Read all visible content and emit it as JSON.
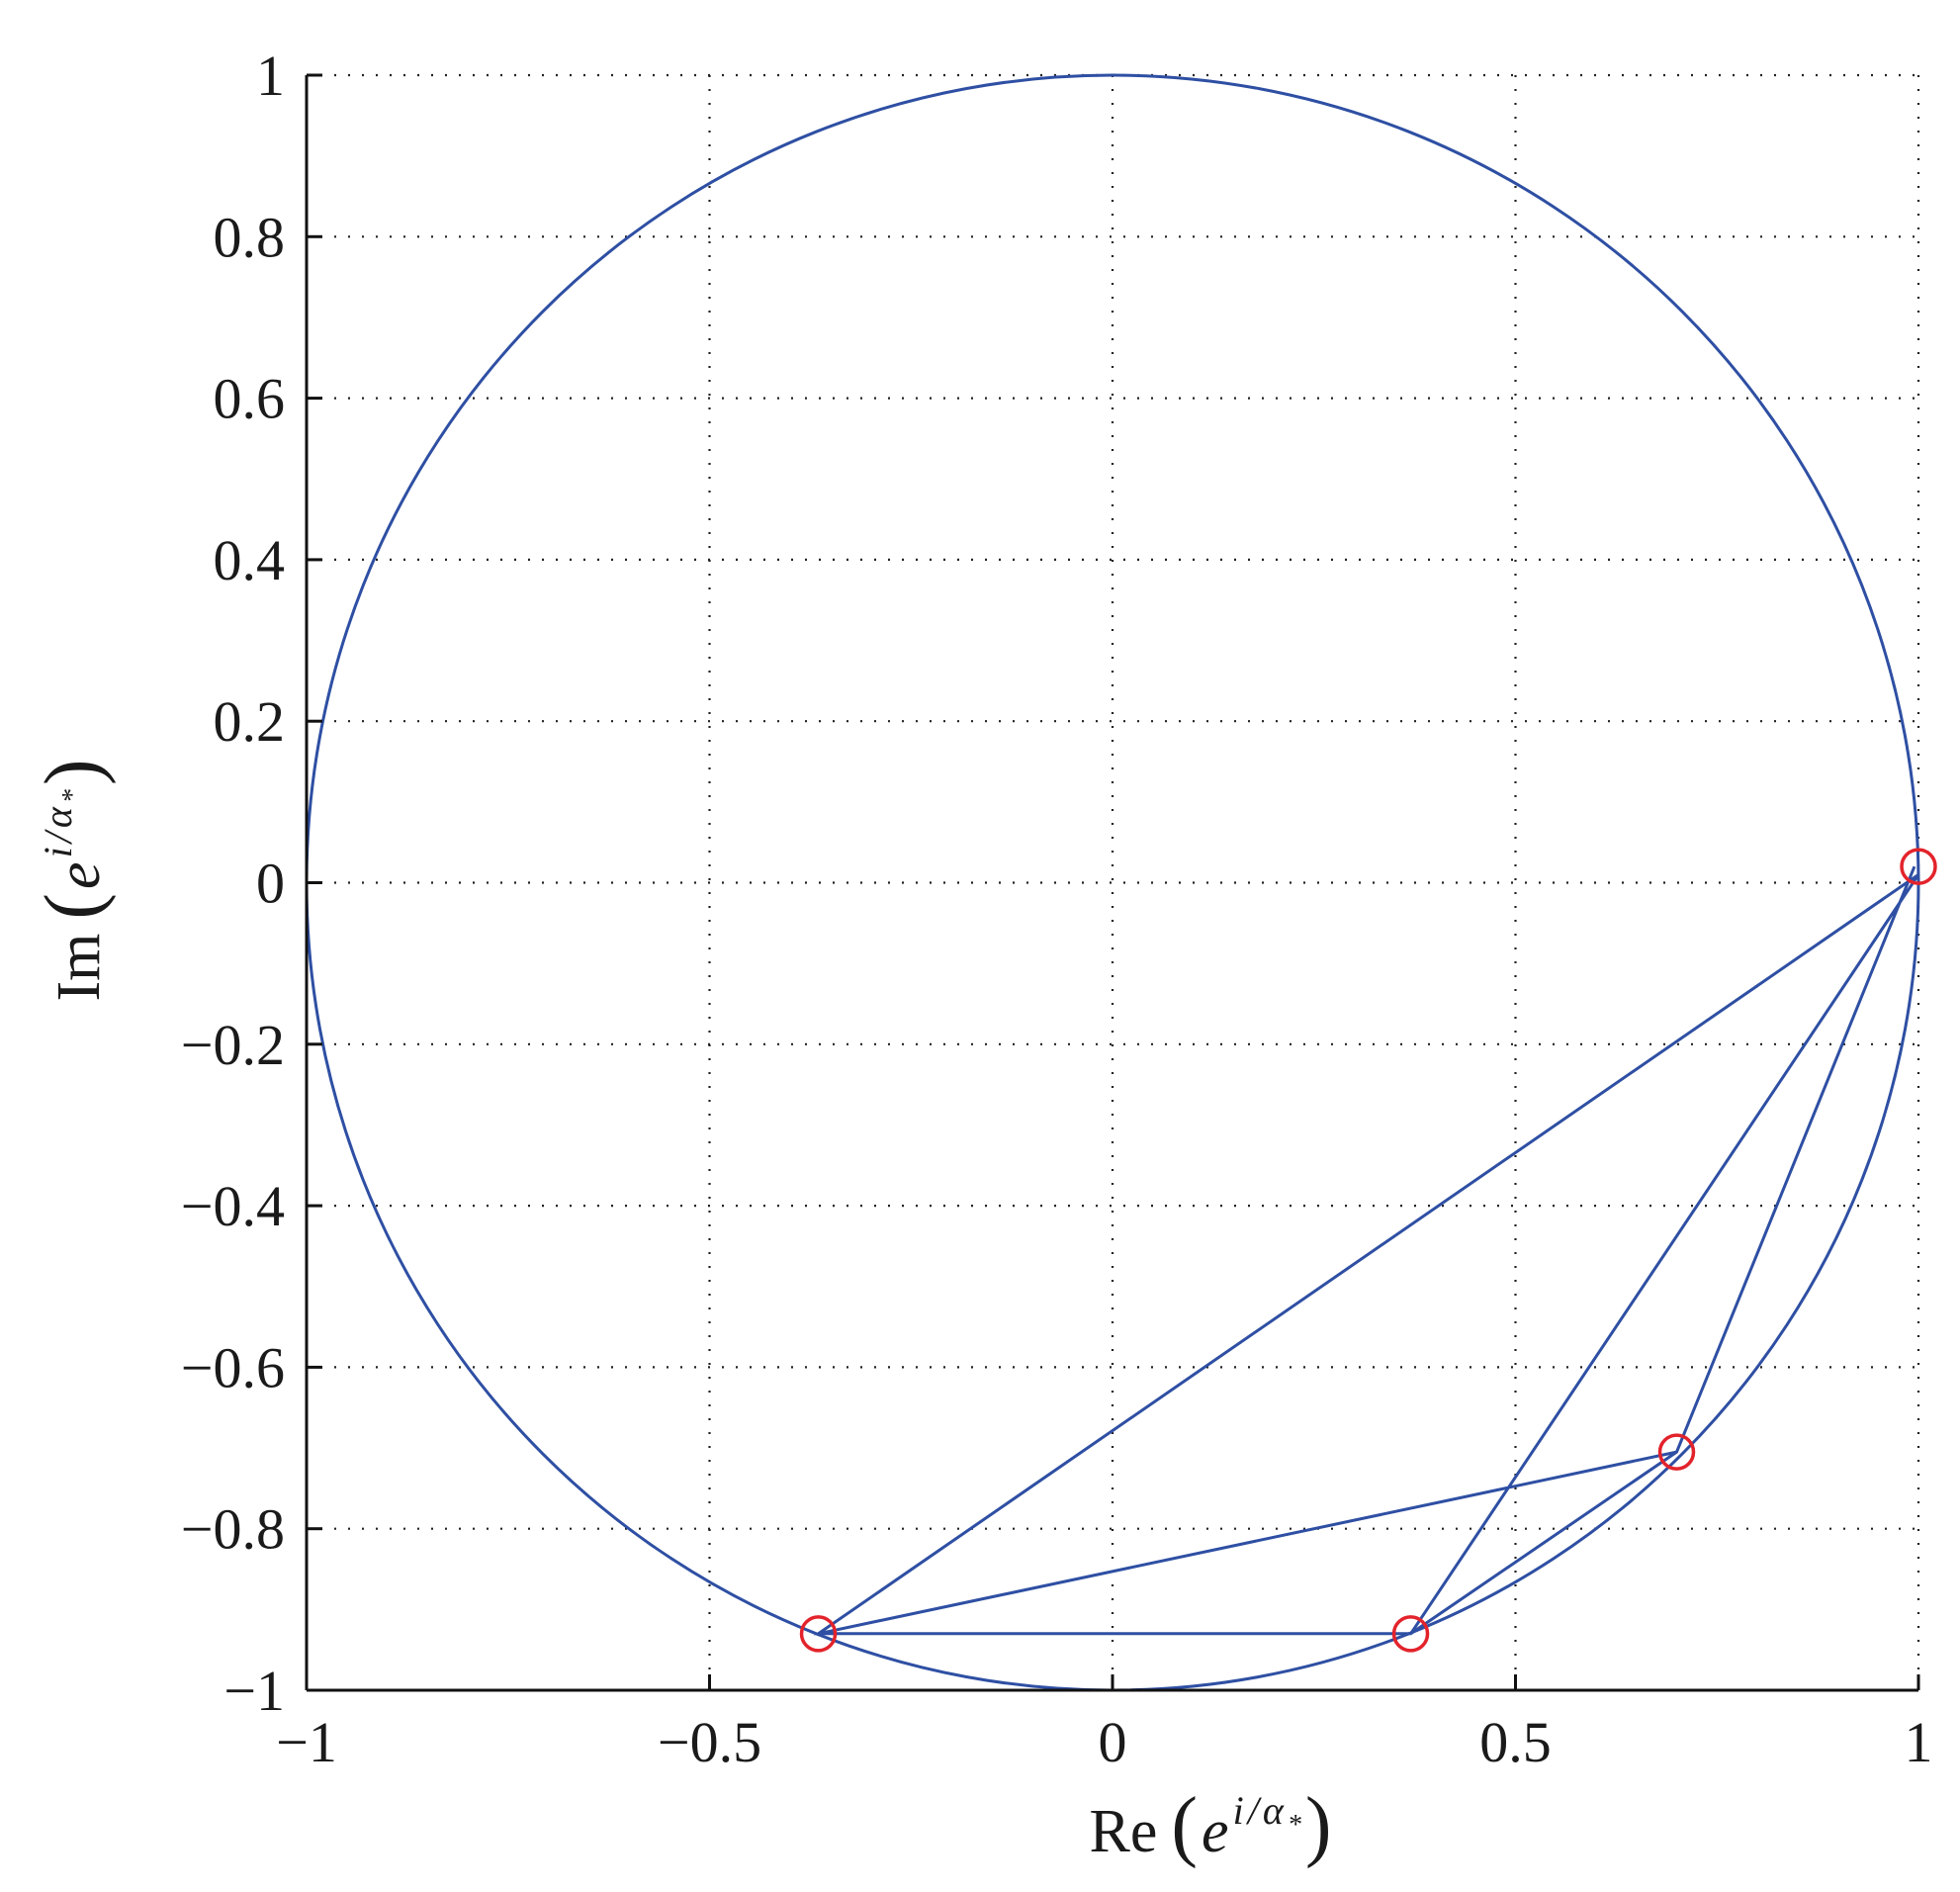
{
  "chart_data": {
    "type": "line",
    "xlabel": "Re (e^{i/α*})",
    "ylabel": "Im (e^{i/α*})",
    "xlabel_parts": {
      "func": "Re",
      "open": "(",
      "base": "e",
      "exp_i": "i",
      "exp_slash": "/",
      "exp_alpha": "α",
      "exp_star": "*",
      "close": ")"
    },
    "ylabel_parts": {
      "func": "Im",
      "open": "(",
      "base": "e",
      "exp_i": "i",
      "exp_slash": "/",
      "exp_alpha": "α",
      "exp_star": "*",
      "close": ")"
    },
    "xlim": [
      -1,
      1
    ],
    "ylim": [
      -1,
      1
    ],
    "xticks": [
      -1,
      -0.5,
      0,
      0.5,
      1
    ],
    "yticks": [
      1,
      0.8,
      0.6,
      0.4,
      0.2,
      0,
      -0.2,
      -0.4,
      -0.6,
      -0.8,
      -1
    ],
    "xtick_labels": [
      "−1",
      "−0.5",
      "0",
      "0.5",
      "1"
    ],
    "ytick_labels": [
      "1",
      "0.8",
      "0.6",
      "0.4",
      "0.2",
      "0",
      "−0.2",
      "−0.4",
      "−0.6",
      "−0.8",
      "−1"
    ],
    "grid": true,
    "grid_style": "dotted",
    "series": [
      {
        "role": "unit-circle",
        "color": "#2e4fa3",
        "marker": "none",
        "x": [
          1,
          0,
          -1,
          0,
          1
        ],
        "y": [
          0,
          1,
          0,
          -1,
          0
        ]
      },
      {
        "role": "trajectory",
        "color": "#2e4fa3",
        "marker": "none",
        "x": [
          0.995,
          0.7,
          0.37,
          1.0,
          -0.365,
          0.7,
          0.37,
          -0.365,
          1.0
        ],
        "y": [
          0.02,
          -0.705,
          -0.93,
          0.01,
          -0.93,
          -0.705,
          -0.93,
          -0.93,
          0.01
        ]
      },
      {
        "role": "points",
        "color": "#e3232b",
        "marker": "circle-open",
        "x": [
          1.0,
          0.7,
          0.37,
          -0.365
        ],
        "y": [
          0.02,
          -0.705,
          -0.93,
          -0.93
        ]
      }
    ]
  }
}
